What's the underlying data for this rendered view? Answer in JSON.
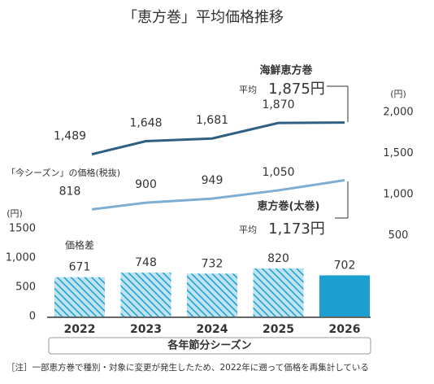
{
  "title": "「恵方巻」平均価格推移",
  "chart_data": [
    {
      "type": "line",
      "annotation": "「今シーズン」の価格(税抜)",
      "ylim": [
        500,
        2000
      ],
      "yunit": "(円)",
      "yticks": [
        {
          "value": 2000,
          "label": "2,000"
        },
        {
          "value": 1500,
          "label": "1,500"
        },
        {
          "value": 1000,
          "label": "1,000"
        },
        500
      ],
      "axis_side": "right",
      "series": [
        {
          "name": "海鮮恵方巻",
          "color": "#2f5f82",
          "avg_label": "平均",
          "values": [
            1489,
            1648,
            1681,
            1870,
            1875
          ],
          "value_labels": [
            "1,489",
            "1,648",
            "1,681",
            "1,870",
            "1,875円"
          ]
        },
        {
          "name": "恵方巻(太巻)",
          "color": "#7eaed3",
          "avg_label": "平均",
          "values": [
            818,
            900,
            949,
            1050,
            1173
          ],
          "value_labels": [
            "818",
            "900",
            "949",
            "1,050",
            "1,173円"
          ]
        }
      ]
    },
    {
      "type": "bar",
      "label": "価格差",
      "xlabel": "各年節分シーズン",
      "categories": [
        "2022",
        "2023",
        "2024",
        "2025",
        "2026"
      ],
      "values": [
        671,
        748,
        732,
        820,
        702
      ],
      "color": "#1a9fd0",
      "hatched": [
        true,
        true,
        true,
        true,
        false
      ],
      "ylim": [
        0,
        1500
      ],
      "yunit": "(円)",
      "yticks": [
        0,
        500,
        {
          "value": 1000,
          "label": "1,000"
        },
        1500
      ]
    }
  ],
  "footnote": "［注］一部恵方巻で種別・対象に変更が発生したため、2022年に遡って価格を再集計している"
}
